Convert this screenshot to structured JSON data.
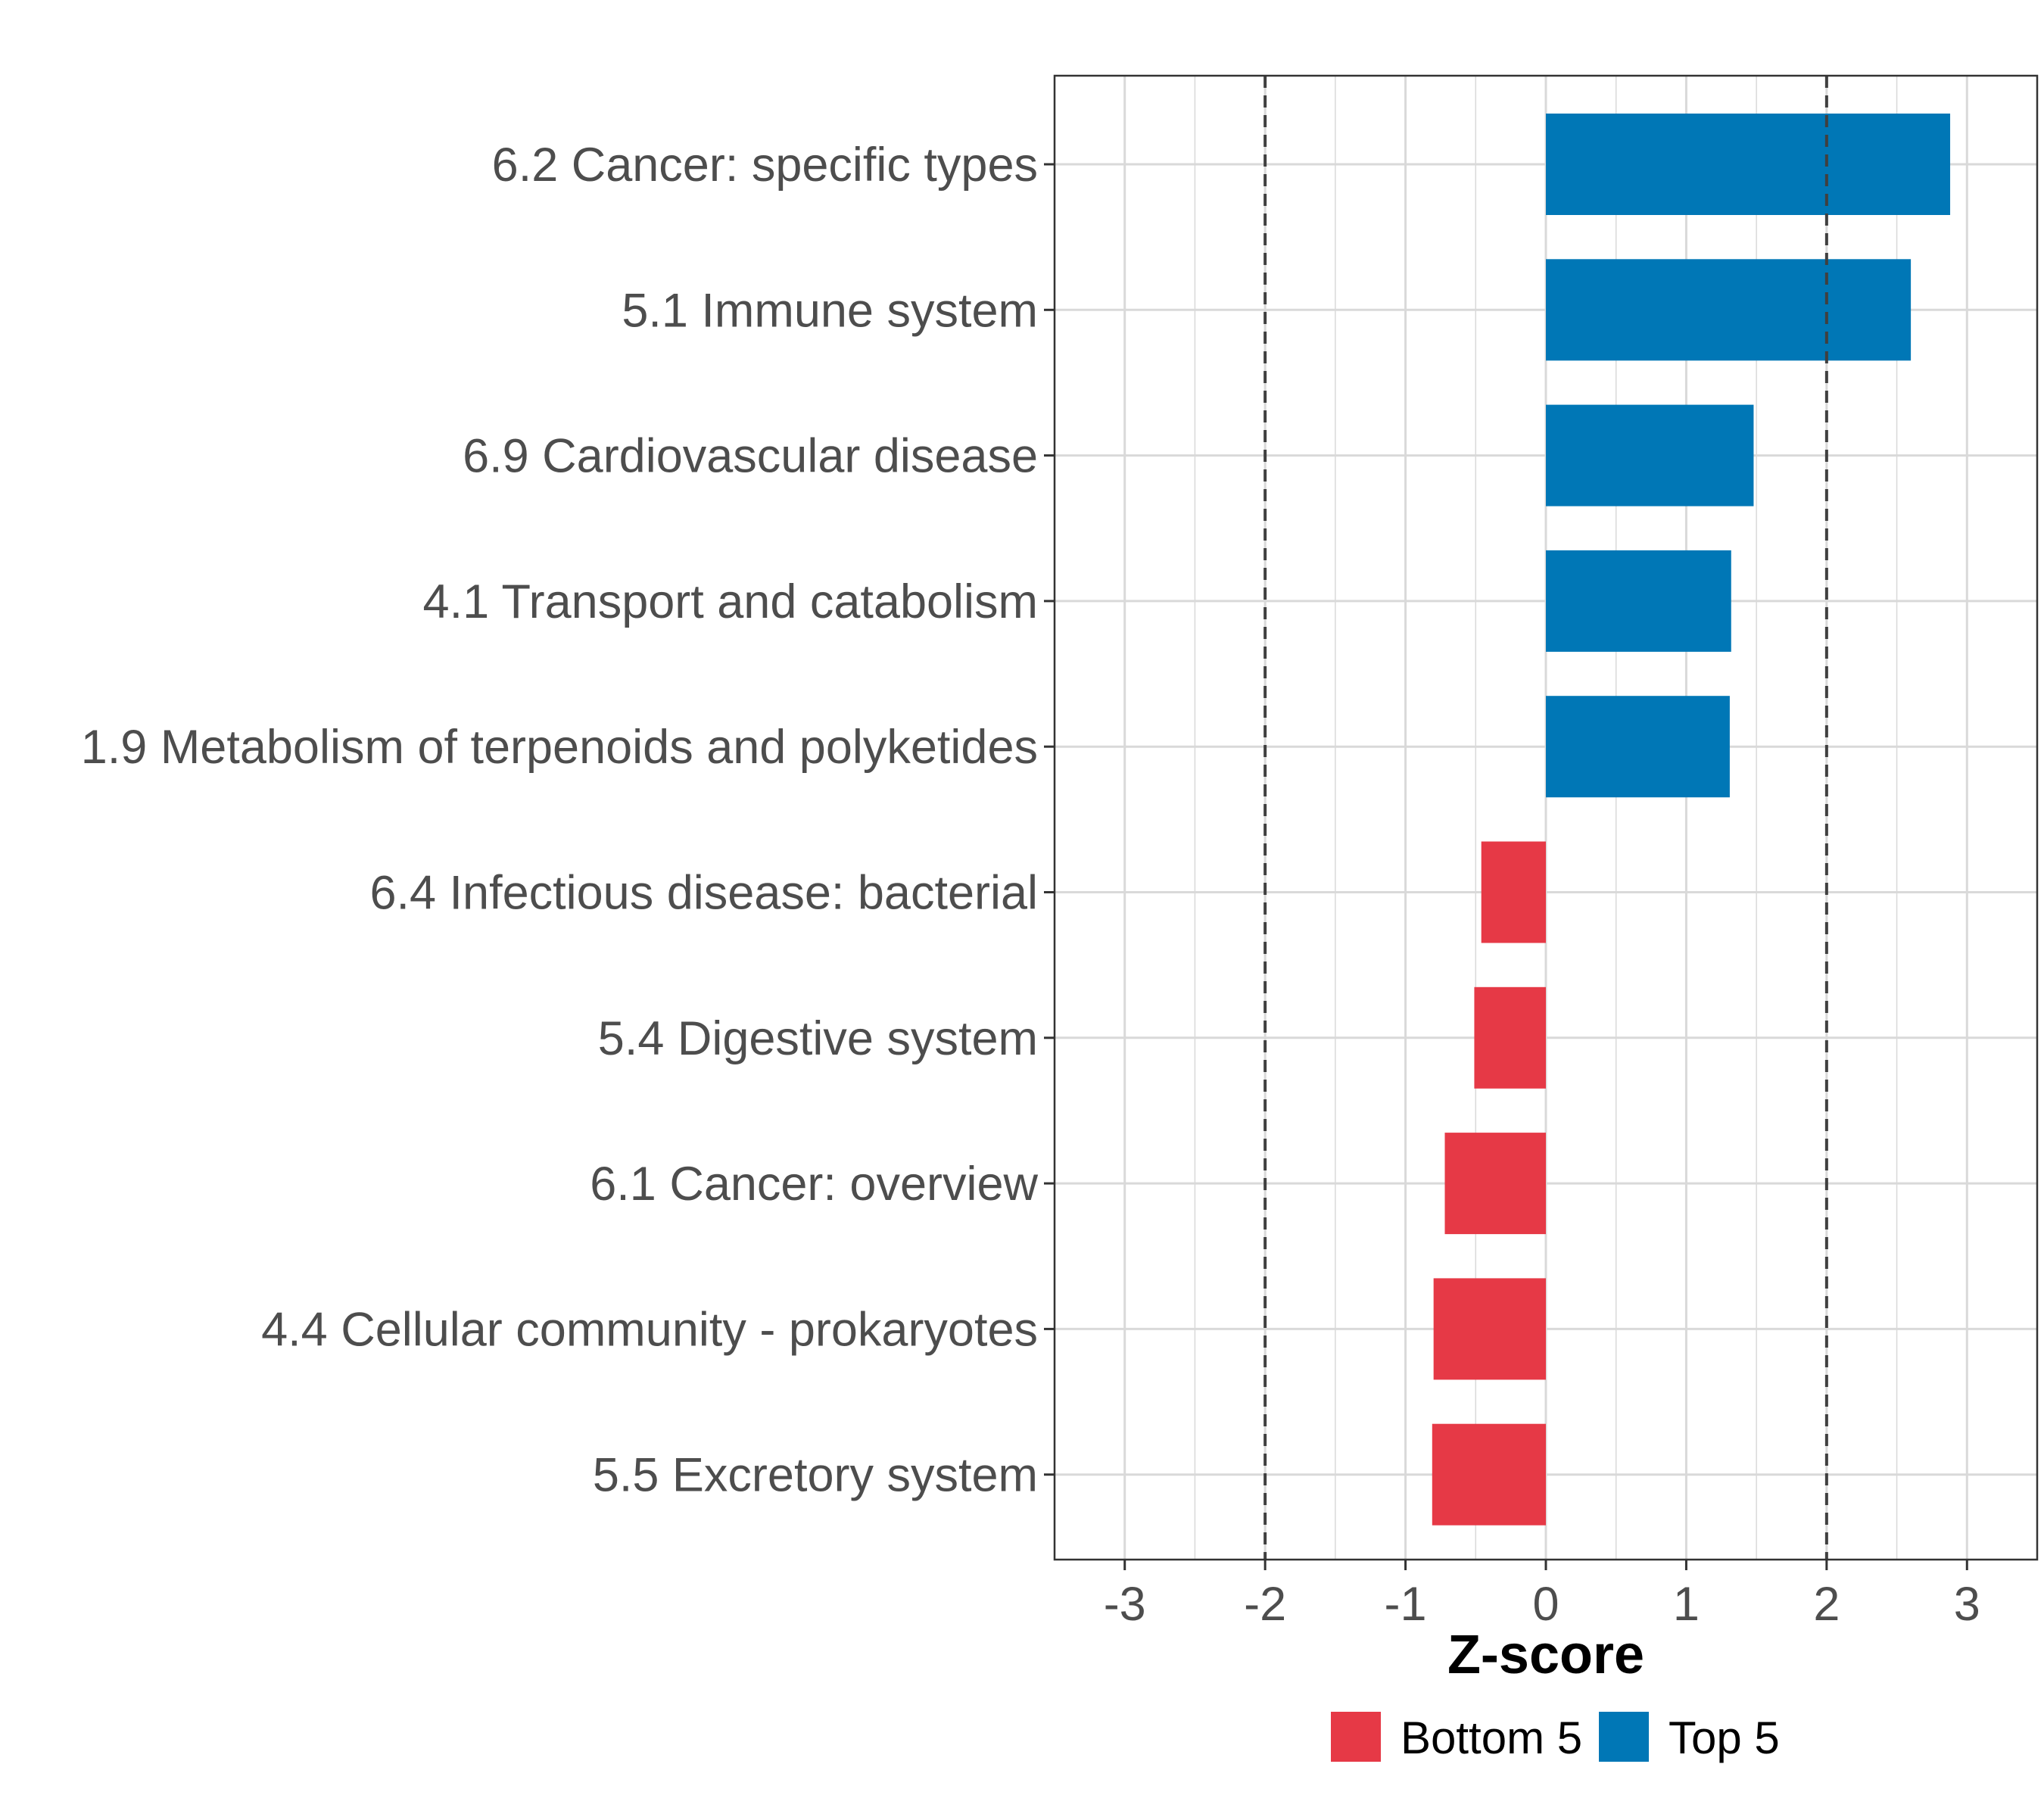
{
  "chart_data": {
    "type": "bar",
    "orientation": "horizontal",
    "categories": [
      "6.2 Cancer: specific types",
      "5.1 Immune system",
      "6.9 Cardiovascular disease",
      "4.1 Transport and catabolism",
      "1.9 Metabolism of terpenoids and polyketides",
      "6.4 Infectious disease: bacterial",
      "5.4 Digestive system",
      "6.1 Cancer: overview",
      "4.4 Cellular community - prokaryotes",
      "5.5 Excretory system"
    ],
    "values": [
      2.88,
      2.6,
      1.48,
      1.32,
      1.31,
      -0.46,
      -0.51,
      -0.72,
      -0.8,
      -0.81
    ],
    "groups": [
      "Top 5",
      "Top 5",
      "Top 5",
      "Top 5",
      "Top 5",
      "Bottom 5",
      "Bottom 5",
      "Bottom 5",
      "Bottom 5",
      "Bottom 5"
    ],
    "xlabel": "Z-score",
    "ylabel": "",
    "xlim": [
      -3.5,
      3.5
    ],
    "xticks": [
      -3,
      -2,
      -1,
      0,
      1,
      2,
      3
    ],
    "xtick_labels": [
      "-3",
      "-2",
      "-1",
      "0",
      "1",
      "2",
      "3"
    ],
    "reference_lines": [
      -2,
      2
    ],
    "grid": true,
    "legend": {
      "position": "bottom",
      "entries": [
        {
          "label": "Bottom 5",
          "color": "#e63946"
        },
        {
          "label": "Top 5",
          "color": "#0077b6"
        }
      ]
    }
  },
  "colors": {
    "Top 5": "#0077b6",
    "Bottom 5": "#e63946",
    "grid": "#d9d9d9",
    "reference_line": "#404040"
  }
}
